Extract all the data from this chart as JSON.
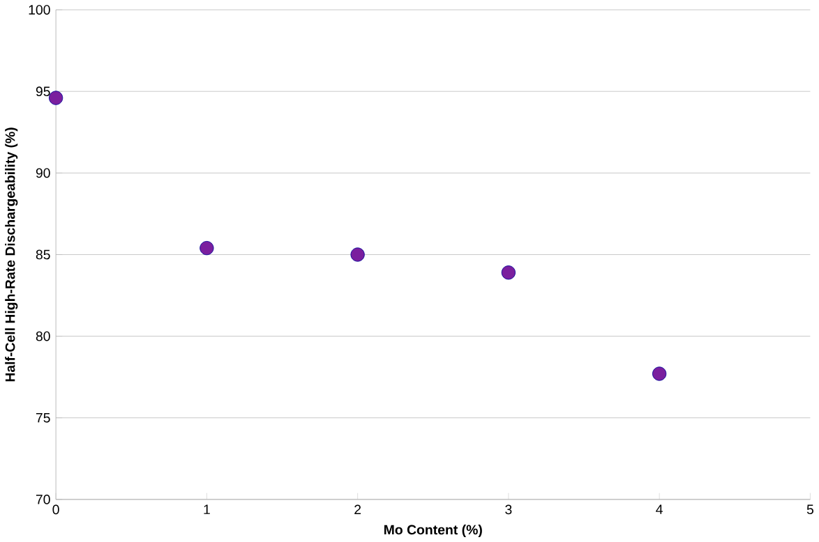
{
  "chart_data": {
    "type": "scatter",
    "xlabel": "Mo Content (%)",
    "ylabel": "Half-Cell High-Rate Dischargeability (%)",
    "x": [
      0,
      1,
      2,
      3,
      4
    ],
    "values": [
      94.6,
      85.4,
      85.0,
      83.9,
      77.7
    ],
    "color": "#7a1f9e",
    "marker": "circle",
    "grid": "y",
    "xlim": [
      0,
      5
    ],
    "xticks": [
      0,
      1,
      2,
      3,
      4,
      5
    ],
    "ylim": [
      70,
      100
    ],
    "yticks": [
      70,
      75,
      80,
      85,
      90,
      95,
      100
    ]
  }
}
